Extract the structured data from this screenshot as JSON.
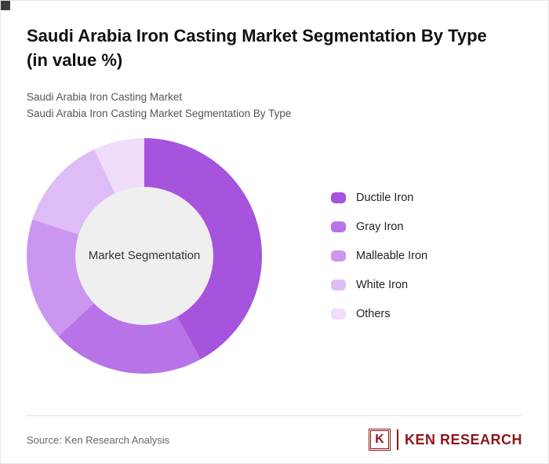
{
  "title": "Saudi Arabia Iron Casting Market Segmentation By Type (in value %)",
  "subtitles": [
    "Saudi Arabia Iron Casting Market",
    "Saudi Arabia Iron Casting Market Segmentation By Type"
  ],
  "chart_data": {
    "type": "pie",
    "subtype": "donut",
    "title": "Saudi Arabia Iron Casting Market Segmentation By Type (in value %)",
    "center_label": "Market Segmentation",
    "unit": "value %",
    "legend_position": "right",
    "start_angle_deg": 0,
    "direction": "clockwise",
    "hole_color": "#efefef",
    "series": [
      {
        "name": "Ductile Iron",
        "value": 42,
        "color": "#a653de"
      },
      {
        "name": "Gray Iron",
        "value": 21,
        "color": "#b873e8"
      },
      {
        "name": "Malleable Iron",
        "value": 17,
        "color": "#cb96ef"
      },
      {
        "name": "White Iron",
        "value": 13,
        "color": "#debcf6"
      },
      {
        "name": "Others",
        "value": 7,
        "color": "#efddfb"
      }
    ]
  },
  "footer": {
    "source": "Source: Ken Research Analysis",
    "logo": {
      "letter": "K",
      "brand": "KEN RESEARCH",
      "color": "#8e151b"
    }
  }
}
